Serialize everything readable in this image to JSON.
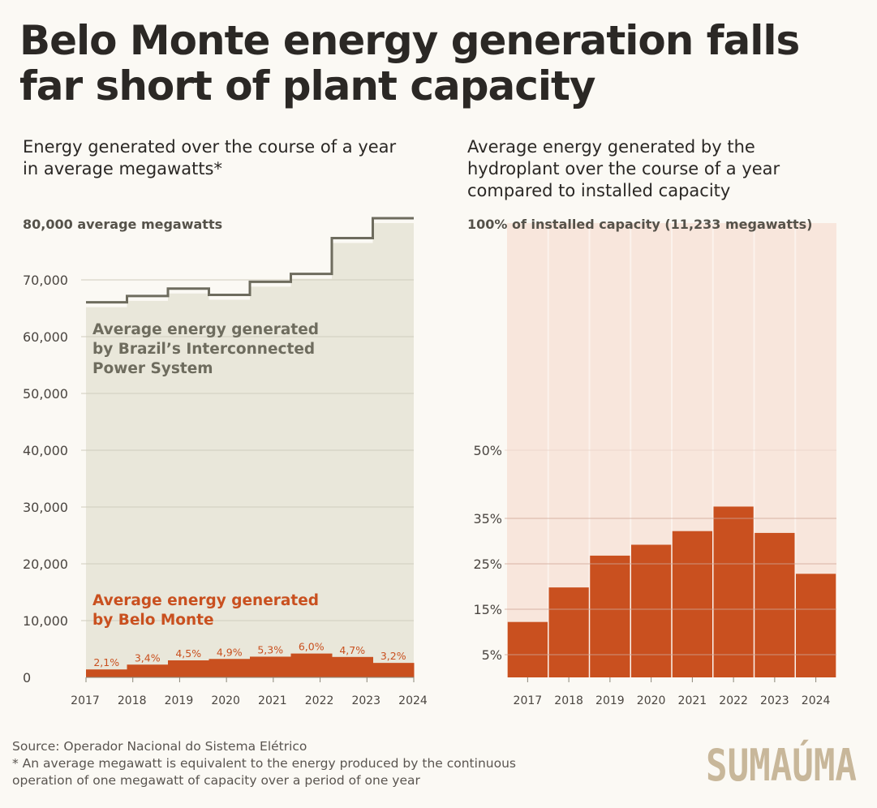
{
  "header": {
    "title": "Belo Monte energy generation falls far short of plant capacity"
  },
  "colors": {
    "background": "#fbf9f4",
    "sin_fill": "#e9e7da",
    "sin_line": "#6e6c5e",
    "belo_monte": "#c9501f",
    "right_panel_bg": "#f8e6dc"
  },
  "chart_data": [
    {
      "type": "area",
      "title": "Energy generated over the course of a year in average megawatts*",
      "top_label": "80,000 average megawatts",
      "ylim": [
        0,
        80000
      ],
      "yticks": [
        {
          "value": 0,
          "label": "0"
        },
        {
          "value": 10000,
          "label": "10,000"
        },
        {
          "value": 20000,
          "label": "20,000"
        },
        {
          "value": 30000,
          "label": "30,000"
        },
        {
          "value": 40000,
          "label": "40,000"
        },
        {
          "value": 50000,
          "label": "50,000"
        },
        {
          "value": 60000,
          "label": "60,000"
        },
        {
          "value": 70000,
          "label": "70,000"
        }
      ],
      "x_ticks": [
        "2017",
        "2018",
        "2019",
        "2020",
        "2021",
        "2022",
        "2023",
        "2024"
      ],
      "categories": [
        "2017",
        "2018",
        "2019",
        "2020",
        "2021",
        "2022",
        "2023",
        "2024"
      ],
      "series": [
        {
          "name": "Average energy generated by Brazil’s Interconnected Power System",
          "values": [
            65200,
            66300,
            67600,
            66500,
            68800,
            70200,
            76500,
            80000
          ]
        },
        {
          "name": "Average energy generated by Belo Monte",
          "values": [
            1400,
            2250,
            3000,
            3250,
            3650,
            4200,
            3600,
            2550
          ],
          "labels": [
            "2,1%",
            "3,4%",
            "4,5%",
            "4,9%",
            "5,3%",
            "6,0%",
            "4,7%",
            "3,2%"
          ]
        }
      ],
      "grid": true
    },
    {
      "type": "bar",
      "title": "Average energy generated by the hydroplant over the course of a year compared to installed capacity",
      "top_label": "100% of installed capacity (11,233 megawatts)",
      "ylim": [
        0,
        100
      ],
      "yticks": [
        {
          "value": 5,
          "label": "5%"
        },
        {
          "value": 15,
          "label": "15%"
        },
        {
          "value": 25,
          "label": "25%"
        },
        {
          "value": 35,
          "label": "35%"
        },
        {
          "value": 50,
          "label": "50%"
        }
      ],
      "categories": [
        "2017",
        "2018",
        "2019",
        "2020",
        "2021",
        "2022",
        "2023",
        "2024"
      ],
      "values": [
        12.2,
        19.8,
        26.8,
        29.2,
        32.2,
        37.6,
        31.8,
        22.8
      ],
      "grid": true
    }
  ],
  "footer": {
    "source": "Source: Operador Nacional do Sistema Elétrico",
    "note": "* An average megawatt is equivalent to the energy produced by the continuous operation of one megawatt of capacity over a period of one year"
  },
  "logo": {
    "text": "SUMAÚMA"
  }
}
